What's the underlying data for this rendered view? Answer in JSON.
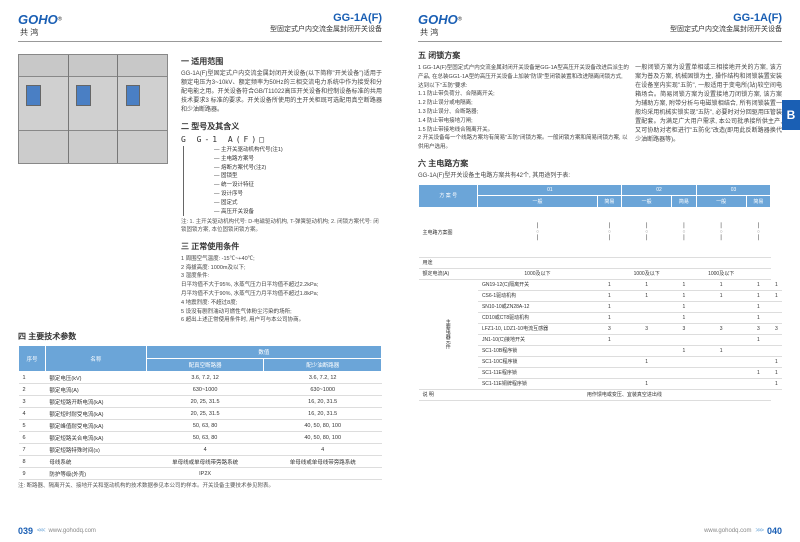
{
  "brand": {
    "logo": "GOHO",
    "cn": "共 鸿",
    "reg": "®"
  },
  "model": "GG-1A(F)",
  "subtitle": "型固定式户内交流金属封闭开关设备",
  "tab_letter": "B",
  "left": {
    "s1": {
      "title": "一 适用范围",
      "text": "GG-1A(F)型固定式户内交流金属封闭开关设备(以下简称\"开关设备\")适用于额定电压为3~10kV、额定频率为50Hz的三相交流电力系统中作为接受和分配电能之用。开关设备符合GB/T11022高压开关设备和控制设备标准的共用技术要求3 标准的要求。开关设备所使用的主开关柜既可选配用真空断路器和少油断路器。"
    },
    "s2": {
      "title": "二 型号及其含义",
      "code": "G G-1 A(F)□",
      "lines": [
        "主开关驱动机构代号(注1)",
        "主电路方案号",
        "熔断方案代号(注2)",
        "固锁型",
        "统一设计特征",
        "设计序号",
        "固定式",
        "高压开关设备"
      ],
      "notes": "注: 1. 主开关驱动机构代号: D-电磁驱动机构, T-弹簧驱动机构;\n2. 闭锁方案代号: 闭锁固锁方案, 本位固锁闭锁方案。"
    },
    "s3": {
      "title": "三 正常使用条件",
      "items": [
        "1 周围空气温度: -15℃~+40℃;",
        "2 海拔高度: 1000m及以下;",
        "3 湿度条件:",
        "日平均值不大于95%, 水蒸气压力日平均值不超过2.2kPa;",
        "月平均值不大于90%, 水蒸气压力月平均值不超过1.8kPa;",
        "4 地震烈度: 不超过8度;",
        "5 设没有剧烈湍动可燃性气体粉尘污染的场所;",
        "6 超出上述正常使用条件时, 用户可与本公司协商。"
      ]
    },
    "s4": {
      "title": "四 主要技术参数",
      "headers": [
        "序号",
        "名称",
        "数值"
      ],
      "subheaders": [
        "",
        "",
        "配真空断路器",
        "配少油断路器"
      ],
      "rows": [
        [
          "1",
          "额定电压(kV)",
          "3.6, 7.2, 12",
          "3.6, 7.2, 12"
        ],
        [
          "2",
          "额定电流(A)",
          "630~1000",
          "630~1000"
        ],
        [
          "3",
          "额定短路开断电流(kA)",
          "20, 25, 31.5",
          "16, 20, 31.5"
        ],
        [
          "4",
          "额定短时耐受电流(kA)",
          "20, 25, 31.5",
          "16, 20, 31.5"
        ],
        [
          "5",
          "额定峰值耐受电流(kA)",
          "50, 63, 80",
          "40, 50, 80, 100"
        ],
        [
          "6",
          "额定短路关合电流(kA)",
          "50, 63, 80",
          "40, 50, 80, 100"
        ],
        [
          "7",
          "额定短路特殊时间(s)",
          "4",
          "4"
        ],
        [
          "8",
          "母线系统",
          "单母线或单母线带旁路系统",
          "单母线或单母线带旁路系统"
        ],
        [
          "9",
          "防护等级(外壳)",
          "IP2X",
          ""
        ]
      ],
      "footnote": "注: 断路器、隔离开关、接地开关和驱动机构的技术数据参见本公司的样本。开关设备主要技术参见附表。"
    }
  },
  "right": {
    "s5": {
      "title": "五 闭锁方案",
      "left_items": [
        "1 GG-1A(F)型固定式户内交流金属封闭开关设备是GG-1A型高压开关设备改进后派生的产品, 在总装GG1-1A型的高压开关设备上加装\"防误\"型闭锁装置和改进隔离闭锁方式, 达到以下\"五防\"要求:",
        "1.1 防止带负荷分、合隔离开关;",
        "1.2 防止误分或电隔离;",
        "1.3 防止误分、合断路器;",
        "1.4 防止带电接地刀闸;",
        "1.5 防止带接地线合隔离开关。",
        "2 开关设备每一个线路方案均有简易\"五防\"闭锁方案。一般闭锁方案和简易闭锁方案, 以供用户选用。"
      ],
      "right_text": "一般闭锁方案为设置单相或三相接地开关的方案, 该方案为普及方案, 机械固锁为主, 操作结构和闭锁装置安装在设备室内实现\"五防\", 一般适用于变电所(站)较空间电箱场合。简易闭锁方案为设置接地刀闭锁方案, 该方案为辅助方案, 附带分析与电磁锁相结合, 所有闭锁装置一般均采用机械实锁实现\"五防\", 必要时对分回驱用压管装置配套。为满足广大用户需求, 本公司批承接所供主产, 又可协助对老柜进行\"五防化\"改造(即用此反断路器换代少油断路器等)。"
    },
    "s6": {
      "title": "六 主电路方案",
      "intro": "GG-1A(F)型开关设备主电路方案共有42个, 其用途列于表:",
      "col_headers": [
        "方 案 号",
        "01",
        "02",
        "03"
      ],
      "sub_headers": [
        "一般",
        "简易",
        "一般",
        "简易",
        "一般",
        "简易"
      ],
      "current_label": "额定电流(A)",
      "current_vals": [
        "1000及以下",
        "",
        "1000及以下",
        "",
        "1000及以下",
        ""
      ],
      "row_group": "主要电器元件",
      "rows": [
        [
          "GN19-12(C)隔离开关",
          "1",
          "1",
          "1",
          "1",
          "1",
          "1"
        ],
        [
          "CS6-1驱动机构",
          "1",
          "1",
          "1",
          "1",
          "1",
          "1"
        ],
        [
          "SN10-10或ZN28A-12",
          "1",
          "",
          "1",
          "",
          "1",
          ""
        ],
        [
          "CD10或CT8驱动机构",
          "1",
          "",
          "1",
          "",
          "1",
          ""
        ],
        [
          "LFZ1-10, LDZ1-10电流互感器",
          "3",
          "3",
          "3",
          "3",
          "3",
          "3"
        ],
        [
          "JN1-10(C)接地开关",
          "1",
          "",
          "",
          "",
          "1",
          ""
        ],
        [
          "SC1-10B程序锁",
          "",
          "",
          "1",
          "1",
          "",
          ""
        ],
        [
          "SC1-10C程序锁",
          "",
          "1",
          "",
          "",
          "",
          "1"
        ],
        [
          "SC1-11E程序锁",
          "",
          "",
          "",
          "",
          "1",
          "1"
        ],
        [
          "SC1-11E铜牌程序锁",
          "",
          "1",
          "",
          "",
          "",
          "1"
        ]
      ],
      "use_label": "说 明",
      "use_text": "用作馈电或变压、宜装真空进出线"
    }
  },
  "footer": {
    "url": "www.gohodq.com",
    "left_page": "039",
    "right_page": "040"
  }
}
